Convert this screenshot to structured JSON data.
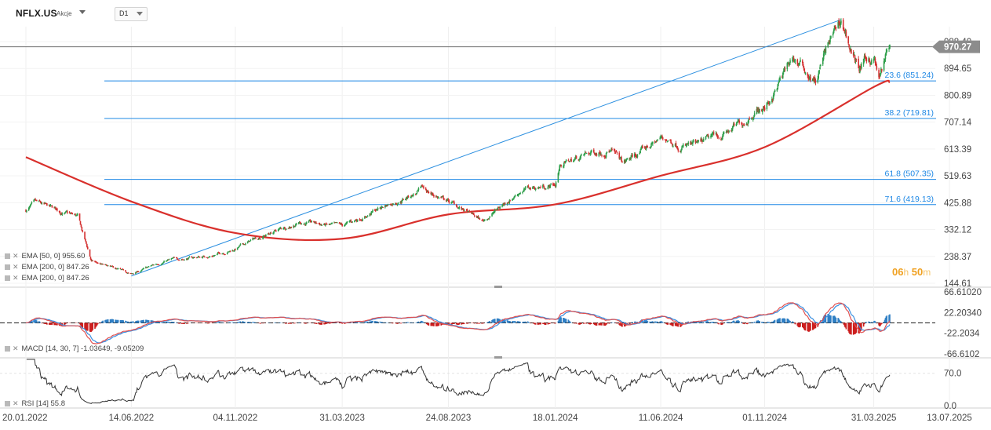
{
  "header": {
    "symbol": "NFLX.US",
    "symbol_type": "Akcje",
    "timeframe": "D1"
  },
  "countdown": {
    "hours": "06",
    "hours_unit": "h",
    "minutes": "50",
    "minutes_unit": "m"
  },
  "price_axis": {
    "labels": [
      "988.40",
      "894.65",
      "800.89",
      "707.14",
      "613.39",
      "519.63",
      "425.88",
      "332.12",
      "238.37",
      "144.61"
    ],
    "values": [
      988.4,
      894.65,
      800.89,
      707.14,
      613.39,
      519.63,
      425.88,
      332.12,
      238.37,
      144.61
    ],
    "current_price": "970.27",
    "current_price_value": 970.27,
    "current_price_color": "#8c8c8c"
  },
  "macd_axis": {
    "labels": [
      "66.61020",
      "22.20340",
      "-22.2034",
      "-66.6102"
    ],
    "values": [
      66.6102,
      22.2034,
      -22.2034,
      -66.6102
    ]
  },
  "rsi_axis": {
    "labels": [
      "70.0",
      "0.0"
    ],
    "values": [
      70.0,
      0.0
    ]
  },
  "time_axis": {
    "labels": [
      "20.01.2022",
      "14.06.2022",
      "04.11.2022",
      "31.03.2023",
      "24.08.2023",
      "18.01.2024",
      "11.06.2024",
      "01.11.2024",
      "31.03.2025",
      "13.07.2025"
    ]
  },
  "indicators": {
    "ema_rows": [
      {
        "label": "EMA [50, 0] 955.60"
      },
      {
        "label": "EMA [200, 0] 847.26"
      },
      {
        "label": "EMA [200, 0] 847.26"
      }
    ],
    "macd": {
      "label": "MACD [14, 30, 7] -1.03649, -9.05209"
    },
    "rsi": {
      "label": "RSI [14] 55.8"
    }
  },
  "chart_data": {
    "type": "candlestick",
    "symbol": "NFLX.US",
    "timeframe": "D1",
    "x_ticks": [
      "20.01.2022",
      "14.06.2022",
      "04.11.2022",
      "31.03.2023",
      "24.08.2023",
      "18.01.2024",
      "11.06.2024",
      "01.11.2024",
      "31.03.2025",
      "13.07.2025"
    ],
    "ylim": [
      144.61,
      1030
    ],
    "price_series_approx": [
      {
        "date": "20.01.2022",
        "close": 400
      },
      {
        "date": "01.02.2022",
        "close": 420
      },
      {
        "date": "01.04.2022",
        "close": 375
      },
      {
        "date": "20.04.2022",
        "close": 220
      },
      {
        "date": "14.06.2022",
        "close": 175
      },
      {
        "date": "01.08.2022",
        "close": 225
      },
      {
        "date": "01.10.2022",
        "close": 240
      },
      {
        "date": "04.11.2022",
        "close": 265
      },
      {
        "date": "01.12.2022",
        "close": 300
      },
      {
        "date": "01.02.2023",
        "close": 360
      },
      {
        "date": "31.03.2023",
        "close": 340
      },
      {
        "date": "01.06.2023",
        "close": 420
      },
      {
        "date": "20.07.2023",
        "close": 470
      },
      {
        "date": "24.08.2023",
        "close": 430
      },
      {
        "date": "10.10.2023",
        "close": 360
      },
      {
        "date": "01.12.2023",
        "close": 470
      },
      {
        "date": "18.01.2024",
        "close": 490
      },
      {
        "date": "25.01.2024",
        "close": 560
      },
      {
        "date": "01.04.2024",
        "close": 620
      },
      {
        "date": "20.04.2024",
        "close": 560
      },
      {
        "date": "11.06.2024",
        "close": 650
      },
      {
        "date": "01.08.2024",
        "close": 620
      },
      {
        "date": "01.10.2024",
        "close": 700
      },
      {
        "date": "20.10.2024",
        "close": 760
      },
      {
        "date": "01.11.2024",
        "close": 755
      },
      {
        "date": "10.12.2024",
        "close": 930
      },
      {
        "date": "10.01.2025",
        "close": 850
      },
      {
        "date": "25.01.2025",
        "close": 960
      },
      {
        "date": "14.02.2025",
        "close": 1060
      },
      {
        "date": "10.03.2025",
        "close": 890
      },
      {
        "date": "31.03.2025",
        "close": 935
      },
      {
        "date": "07.04.2025",
        "close": 855
      },
      {
        "date": "22.04.2025",
        "close": 970
      }
    ],
    "ema200_approx": [
      {
        "date": "20.01.2022",
        "value": 585
      },
      {
        "date": "14.06.2022",
        "value": 430
      },
      {
        "date": "04.11.2022",
        "value": 320
      },
      {
        "date": "31.03.2023",
        "value": 300
      },
      {
        "date": "24.08.2023",
        "value": 385
      },
      {
        "date": "18.01.2024",
        "value": 420
      },
      {
        "date": "11.06.2024",
        "value": 520
      },
      {
        "date": "01.11.2024",
        "value": 620
      },
      {
        "date": "31.03.2025",
        "value": 830
      },
      {
        "date": "22.04.2025",
        "value": 847.26
      }
    ],
    "fibonacci_levels": [
      {
        "label": "23.6 (851.24)",
        "value": 851.24
      },
      {
        "label": "38.2 (719.81)",
        "value": 719.81
      },
      {
        "label": "61.8 (507.35)",
        "value": 507.35
      },
      {
        "label": "71.6 (419.13)",
        "value": 419.13
      }
    ],
    "fibonacci_color": "#1e88e5",
    "trendline": {
      "from": {
        "date": "14.06.2022",
        "value": 170
      },
      "to": {
        "date": "14.02.2025",
        "value": 1065
      }
    },
    "colors": {
      "up": "#2e9e4a",
      "down": "#d32f2f",
      "ema": "#d9302c",
      "macd_line": "#e05050",
      "signal_line": "#3a8fe0",
      "hist_pos": "#2f7fc4",
      "hist_neg": "#cc1f1f",
      "rsi": "#333333"
    },
    "macd": {
      "label": "MACD [14, 30, 7]",
      "values": [
        -1.03649,
        -9.05209
      ],
      "ylim": [
        -66.6102,
        66.6102
      ]
    },
    "rsi": {
      "label": "RSI [14]",
      "value": 55.8,
      "ylim": [
        0,
        100
      ],
      "level": 70
    }
  }
}
